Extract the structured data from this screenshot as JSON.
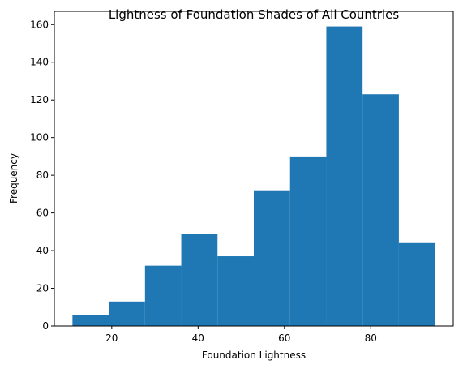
{
  "chart_data": {
    "type": "bar",
    "title": "Lightness of Foundation Shades of All Countries",
    "xlabel": "Foundation Lightness",
    "ylabel": "Frequency",
    "bin_edges": [
      10.9,
      19.3,
      27.7,
      36.1,
      44.5,
      52.9,
      61.3,
      69.7,
      78.1,
      86.5,
      94.9
    ],
    "values": [
      6,
      13,
      32,
      49,
      37,
      72,
      90,
      159,
      123,
      44
    ],
    "xlim": [
      6.7,
      99.1
    ],
    "ylim": [
      0,
      167
    ],
    "xticks": [
      20,
      40,
      60,
      80
    ],
    "yticks": [
      0,
      20,
      40,
      60,
      80,
      100,
      120,
      140,
      160
    ],
    "bar_color": "#1f77b4",
    "grid": false
  }
}
